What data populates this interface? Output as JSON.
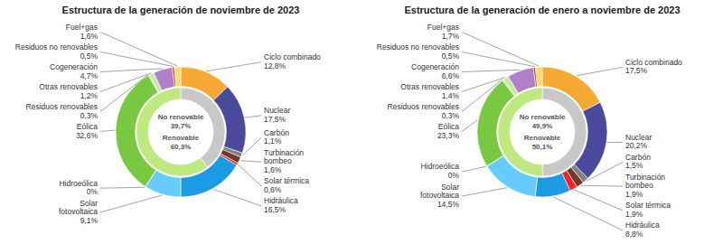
{
  "chart_data": [
    {
      "type": "donut",
      "title": "Estructura de la generación de noviembre de 2023",
      "categories": [
        "Ciclo combinado",
        "Nuclear",
        "Carbón",
        "Turbinación\nbombeo",
        "Solar térmica",
        "Hidráulica",
        "Solar\nfotovoltaica",
        "Hidroeólica",
        "Eólica",
        "Residuos renovables",
        "Otras renovables",
        "Cogeneración",
        "Residuos no renovables",
        "Fuel+gas"
      ],
      "values": [
        12.8,
        17.5,
        1.1,
        1.6,
        0.6,
        16.5,
        9.1,
        0.05,
        32.6,
        0.3,
        1.2,
        4.7,
        0.5,
        1.6
      ],
      "value_labels": [
        "12,8%",
        "17,5%",
        "1,1%",
        "1,6%",
        "0,6%",
        "16,5%",
        "9,1%",
        "0%",
        "32,6%",
        "0,3%",
        "1,2%",
        "4,7%",
        "0,5%",
        "1,6%"
      ],
      "colors": [
        "#F5A833",
        "#4A4A9C",
        "#808080",
        "#6B3A2A",
        "#FF2222",
        "#1B9BE3",
        "#66CCFF",
        "#CCDD88",
        "#78C840",
        "#A8CF85",
        "#C8E8A0",
        "#B080C8",
        "#E83030",
        "#F0E070"
      ],
      "inner_categories": [
        "No renovable",
        "Renovable"
      ],
      "inner_values": [
        39.7,
        60.3
      ],
      "inner_value_labels": [
        "39,7%",
        "60,3%"
      ],
      "inner_colors": [
        "#C8C8C8",
        "#C0E880"
      ],
      "data_labels": true
    },
    {
      "type": "donut",
      "title": "Estructura de la generación de enero a noviembre de 2023",
      "categories": [
        "Ciclo combinado",
        "Nuclear",
        "Carbón",
        "Turbinación\nbombeo",
        "Solar térmica",
        "Hidráulica",
        "Solar\nfotovoltaica",
        "Hidroeólica",
        "Eólica",
        "Residuos renovables",
        "Otras renovables",
        "Cogeneración",
        "Residuos no renovables",
        "Fuel+gas"
      ],
      "values": [
        17.5,
        20.2,
        1.5,
        1.9,
        1.9,
        8.8,
        14.5,
        0.05,
        23.3,
        0.3,
        1.4,
        6.6,
        0.5,
        1.7
      ],
      "value_labels": [
        "17,5%",
        "20,2%",
        "1,5%",
        "1,9%",
        "1,9%",
        "8,8%",
        "14,5%",
        "0%",
        "23,3%",
        "0,3%",
        "1,4%",
        "6,6%",
        "0,5%",
        "1,7%"
      ],
      "colors": [
        "#F5A833",
        "#4A4A9C",
        "#808080",
        "#6B3A2A",
        "#FF2222",
        "#1B9BE3",
        "#66CCFF",
        "#CCDD88",
        "#78C840",
        "#A8CF85",
        "#C8E8A0",
        "#B080C8",
        "#E83030",
        "#F0E070"
      ],
      "inner_categories": [
        "No renovable",
        "Renovable"
      ],
      "inner_values": [
        49.9,
        50.1
      ],
      "inner_value_labels": [
        "49,9%",
        "50,1%"
      ],
      "inner_colors": [
        "#C8C8C8",
        "#C0E880"
      ],
      "data_labels": true
    }
  ]
}
